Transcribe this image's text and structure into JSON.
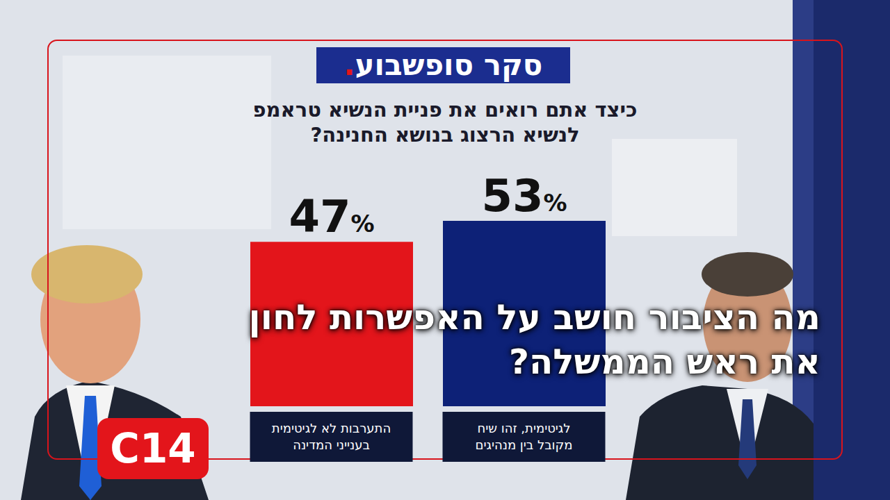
{
  "chart_data": {
    "type": "bar",
    "title": "סקר סופשבוע.",
    "subtitle": "כיצד אתם רואים את פניית הנשיא טראמפ לנשיא הרצוג בנושא החנינה?",
    "categories": [
      "לגיטימית, זהו שיח מקובל בין מנהיגים",
      "התערבות לא לגיטימית בענייני המדינה"
    ],
    "values": [
      53,
      47
    ],
    "value_labels": [
      "53%",
      "47%"
    ],
    "colors": [
      "#0d2177",
      "#e3151b"
    ],
    "ylim": [
      0,
      53
    ],
    "data_labels": true,
    "tick_labels": "x",
    "annotations": [
      "מה הציבור חושב על האפשרות לחון את ראש הממשלה?",
      "C14"
    ]
  }
}
